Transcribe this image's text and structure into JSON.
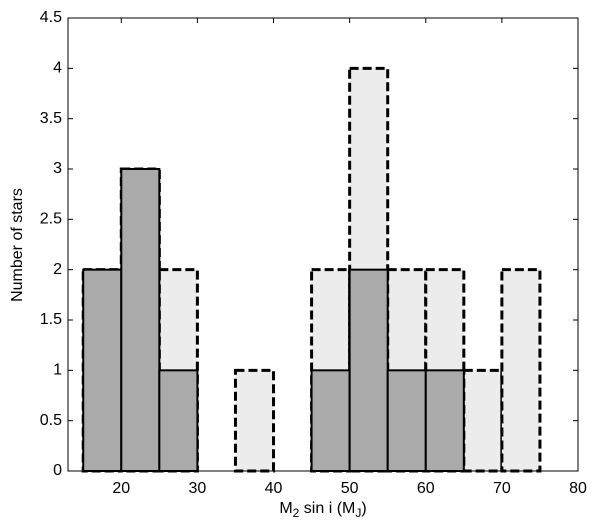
{
  "chart_data": {
    "type": "histogram",
    "ylabel": "Number of stars",
    "xlabel": [
      {
        "text": "M"
      },
      {
        "text": "2",
        "sub": true
      },
      {
        "text": " sin i  (M"
      },
      {
        "text": "J",
        "sub": true
      },
      {
        "text": ")"
      }
    ],
    "bins": [
      15,
      20,
      25,
      30,
      35,
      40,
      45,
      50,
      55,
      60,
      65,
      70,
      75
    ],
    "series": [
      {
        "color": "#ececec",
        "outline": "dashed",
        "values": [
          2,
          3,
          2,
          0,
          1,
          0,
          2,
          4,
          2,
          2,
          1,
          2
        ]
      },
      {
        "color": "#aaaaaa",
        "outline": "solid",
        "values": [
          2,
          3,
          1,
          0,
          0,
          0,
          1,
          2,
          1,
          1,
          0,
          0
        ]
      }
    ],
    "xlim": [
      13,
      80
    ],
    "xticks": [
      20,
      30,
      40,
      50,
      60,
      70,
      80
    ],
    "ylim": [
      0,
      4.5
    ],
    "yticks": [
      0,
      0.5,
      1,
      1.5,
      2,
      2.5,
      3,
      3.5,
      4,
      4.5
    ],
    "grid": false
  }
}
